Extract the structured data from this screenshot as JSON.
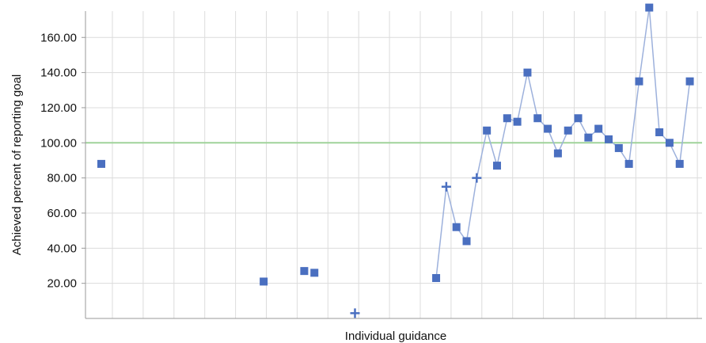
{
  "chart_data": {
    "type": "line",
    "title": "",
    "xlabel": "Individual guidance",
    "ylabel": "Achieved percent of reporting goal",
    "ylim": [
      0,
      175
    ],
    "yticks": [
      20,
      40,
      60,
      80,
      100,
      120,
      140,
      160
    ],
    "ytick_labels": [
      "20.00",
      "40.00",
      "60.00",
      "80.00",
      "100.00",
      "120.00",
      "140.00",
      "160.00"
    ],
    "grid": true,
    "legend": "none",
    "x_count": 60,
    "reference_line": {
      "value": 100,
      "color": "#9fd39a"
    },
    "series": [
      {
        "color": "#4a6fc0",
        "line_color": "#9db1dc",
        "points": [
          {
            "i": 0,
            "y": 88,
            "marker": "square"
          },
          {
            "i": 16,
            "y": 21,
            "marker": "square"
          },
          {
            "i": 20,
            "y": 27,
            "marker": "square"
          },
          {
            "i": 21,
            "y": 26,
            "marker": "square"
          },
          {
            "i": 25,
            "y": 3,
            "marker": "plus"
          },
          {
            "i": 33,
            "y": 23,
            "marker": "square"
          },
          {
            "i": 34,
            "y": 75,
            "marker": "plus"
          },
          {
            "i": 35,
            "y": 52,
            "marker": "square"
          },
          {
            "i": 36,
            "y": 44,
            "marker": "square"
          },
          {
            "i": 37,
            "y": 80,
            "marker": "plus"
          },
          {
            "i": 38,
            "y": 107,
            "marker": "square"
          },
          {
            "i": 39,
            "y": 87,
            "marker": "square"
          },
          {
            "i": 40,
            "y": 114,
            "marker": "square"
          },
          {
            "i": 41,
            "y": 112,
            "marker": "square"
          },
          {
            "i": 42,
            "y": 140,
            "marker": "square"
          },
          {
            "i": 43,
            "y": 114,
            "marker": "square"
          },
          {
            "i": 44,
            "y": 108,
            "marker": "square"
          },
          {
            "i": 45,
            "y": 94,
            "marker": "square"
          },
          {
            "i": 46,
            "y": 107,
            "marker": "square"
          },
          {
            "i": 47,
            "y": 114,
            "marker": "square"
          },
          {
            "i": 48,
            "y": 103,
            "marker": "square"
          },
          {
            "i": 49,
            "y": 108,
            "marker": "square"
          },
          {
            "i": 50,
            "y": 102,
            "marker": "square"
          },
          {
            "i": 51,
            "y": 97,
            "marker": "square"
          },
          {
            "i": 52,
            "y": 88,
            "marker": "square"
          },
          {
            "i": 53,
            "y": 135,
            "marker": "square"
          },
          {
            "i": 54,
            "y": 177,
            "marker": "square"
          },
          {
            "i": 55,
            "y": 106,
            "marker": "square"
          },
          {
            "i": 56,
            "y": 100,
            "marker": "square"
          },
          {
            "i": 57,
            "y": 88,
            "marker": "square"
          },
          {
            "i": 58,
            "y": 135,
            "marker": "square"
          }
        ],
        "connected_from": 33
      }
    ]
  }
}
